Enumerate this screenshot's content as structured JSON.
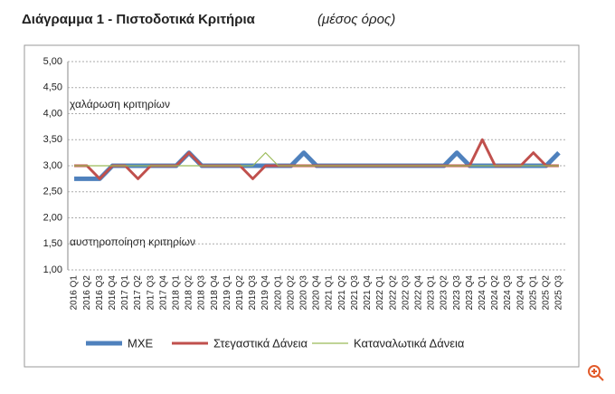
{
  "chart_data": {
    "type": "line",
    "title": "Διάγραμμα 1 - Πιστοδοτικά Κριτήρια",
    "subtitle": "(μέσος όρος)",
    "categories": [
      "2016 Q1",
      "2016 Q2",
      "2016 Q3",
      "2016 Q4",
      "2017 Q1",
      "2017 Q2",
      "2017 Q3",
      "2017 Q4",
      "2018 Q1",
      "2018 Q2",
      "2018 Q3",
      "2018 Q4",
      "2019 Q1",
      "2019 Q2",
      "2019 Q3",
      "2019 Q4",
      "2020 Q1",
      "2020 Q2",
      "2020 Q3",
      "2020 Q4",
      "2021 Q1",
      "2021 Q2",
      "2021 Q3",
      "2021 Q4",
      "2022 Q1",
      "2022 Q2",
      "2022 Q3",
      "2022 Q4",
      "2023 Q1",
      "2023 Q2",
      "2023 Q3",
      "2023 Q4",
      "2024 Q1",
      "2024 Q2",
      "2024 Q3",
      "2024 Q4",
      "2025 Q1",
      "2025 Q2",
      "2025 Q3"
    ],
    "series": [
      {
        "name": "ΜΧΕ",
        "color": "#4f81bd",
        "values": [
          2.75,
          2.75,
          2.75,
          3,
          3,
          3,
          3,
          3,
          3,
          3.25,
          3,
          3,
          3,
          3,
          3,
          3,
          3,
          3,
          3.25,
          3,
          3,
          3,
          3,
          3,
          3,
          3,
          3,
          3,
          3,
          3,
          3.25,
          3,
          3,
          3,
          3,
          3,
          3,
          3,
          3.25
        ]
      },
      {
        "name": "Στεγαστικά Δάνεια",
        "color": "#c0504d",
        "values": [
          3,
          3,
          2.75,
          3,
          3,
          2.75,
          3,
          3,
          3,
          3.25,
          3,
          3,
          3,
          3,
          2.75,
          3,
          3,
          3,
          3,
          3,
          3,
          3,
          3,
          3,
          3,
          3,
          3,
          3,
          3,
          3,
          3,
          3,
          3.5,
          3,
          3,
          3,
          3.25,
          3,
          3
        ]
      },
      {
        "name": "Καταναλωτικά Δάνεια",
        "color": "#9bbb59",
        "values": [
          3,
          3,
          3,
          3,
          3,
          3,
          3,
          3,
          3,
          3,
          3,
          3,
          3,
          3,
          3,
          3.25,
          3,
          3,
          3,
          3,
          3,
          3,
          3,
          3,
          3,
          3,
          3,
          3,
          3,
          3,
          3,
          3,
          3,
          3,
          3,
          3,
          3,
          3,
          3
        ]
      }
    ],
    "ylim": [
      1,
      5
    ],
    "yticks": [
      {
        "value": 1,
        "label": "1,00"
      },
      {
        "value": 1.5,
        "label": "1,50"
      },
      {
        "value": 2,
        "label": "2,00"
      },
      {
        "value": 2.5,
        "label": "2,50"
      },
      {
        "value": 3,
        "label": "3,00"
      },
      {
        "value": 3.5,
        "label": "3,50"
      },
      {
        "value": 4,
        "label": "4,00"
      },
      {
        "value": 4.5,
        "label": "4,50"
      },
      {
        "value": 5,
        "label": "5,00"
      }
    ],
    "annotations": [
      "χαλάρωση κριτηρίων",
      "αυστηροποίηση κριτηρίων"
    ],
    "grid": true
  }
}
